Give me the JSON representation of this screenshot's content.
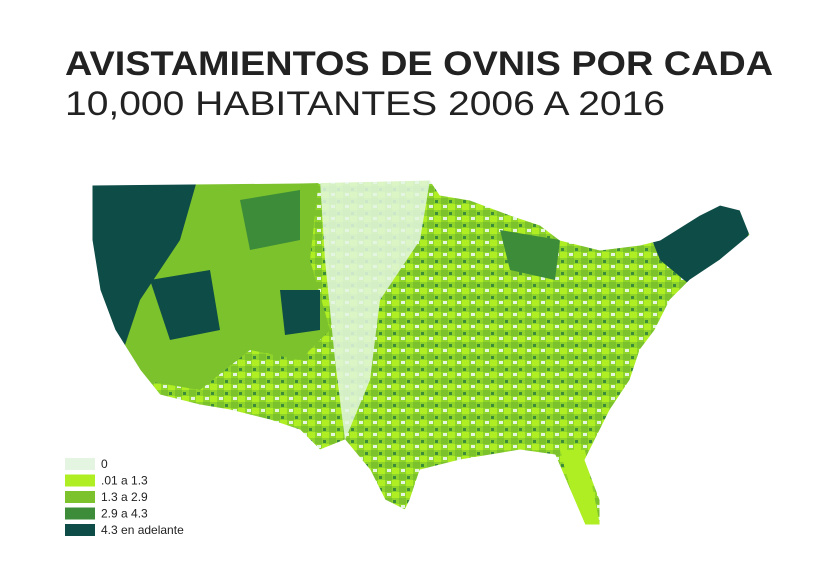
{
  "title": {
    "line1": "AVISTAMIENTOS DE OVNIS POR CADA",
    "line2": "10,000 HABITANTES 2006 A 2016"
  },
  "legend": [
    {
      "label": "0",
      "color": "#e4f6e2"
    },
    {
      "label": ".01 a 1.3",
      "color": "#aeee22"
    },
    {
      "label": "1.3 a 2.9",
      "color": "#7cc22c"
    },
    {
      "label": "2.9 a 4.3",
      "color": "#3c8c3a"
    },
    {
      "label": "4.3 en adelante",
      "color": "#0e4c47"
    }
  ]
}
